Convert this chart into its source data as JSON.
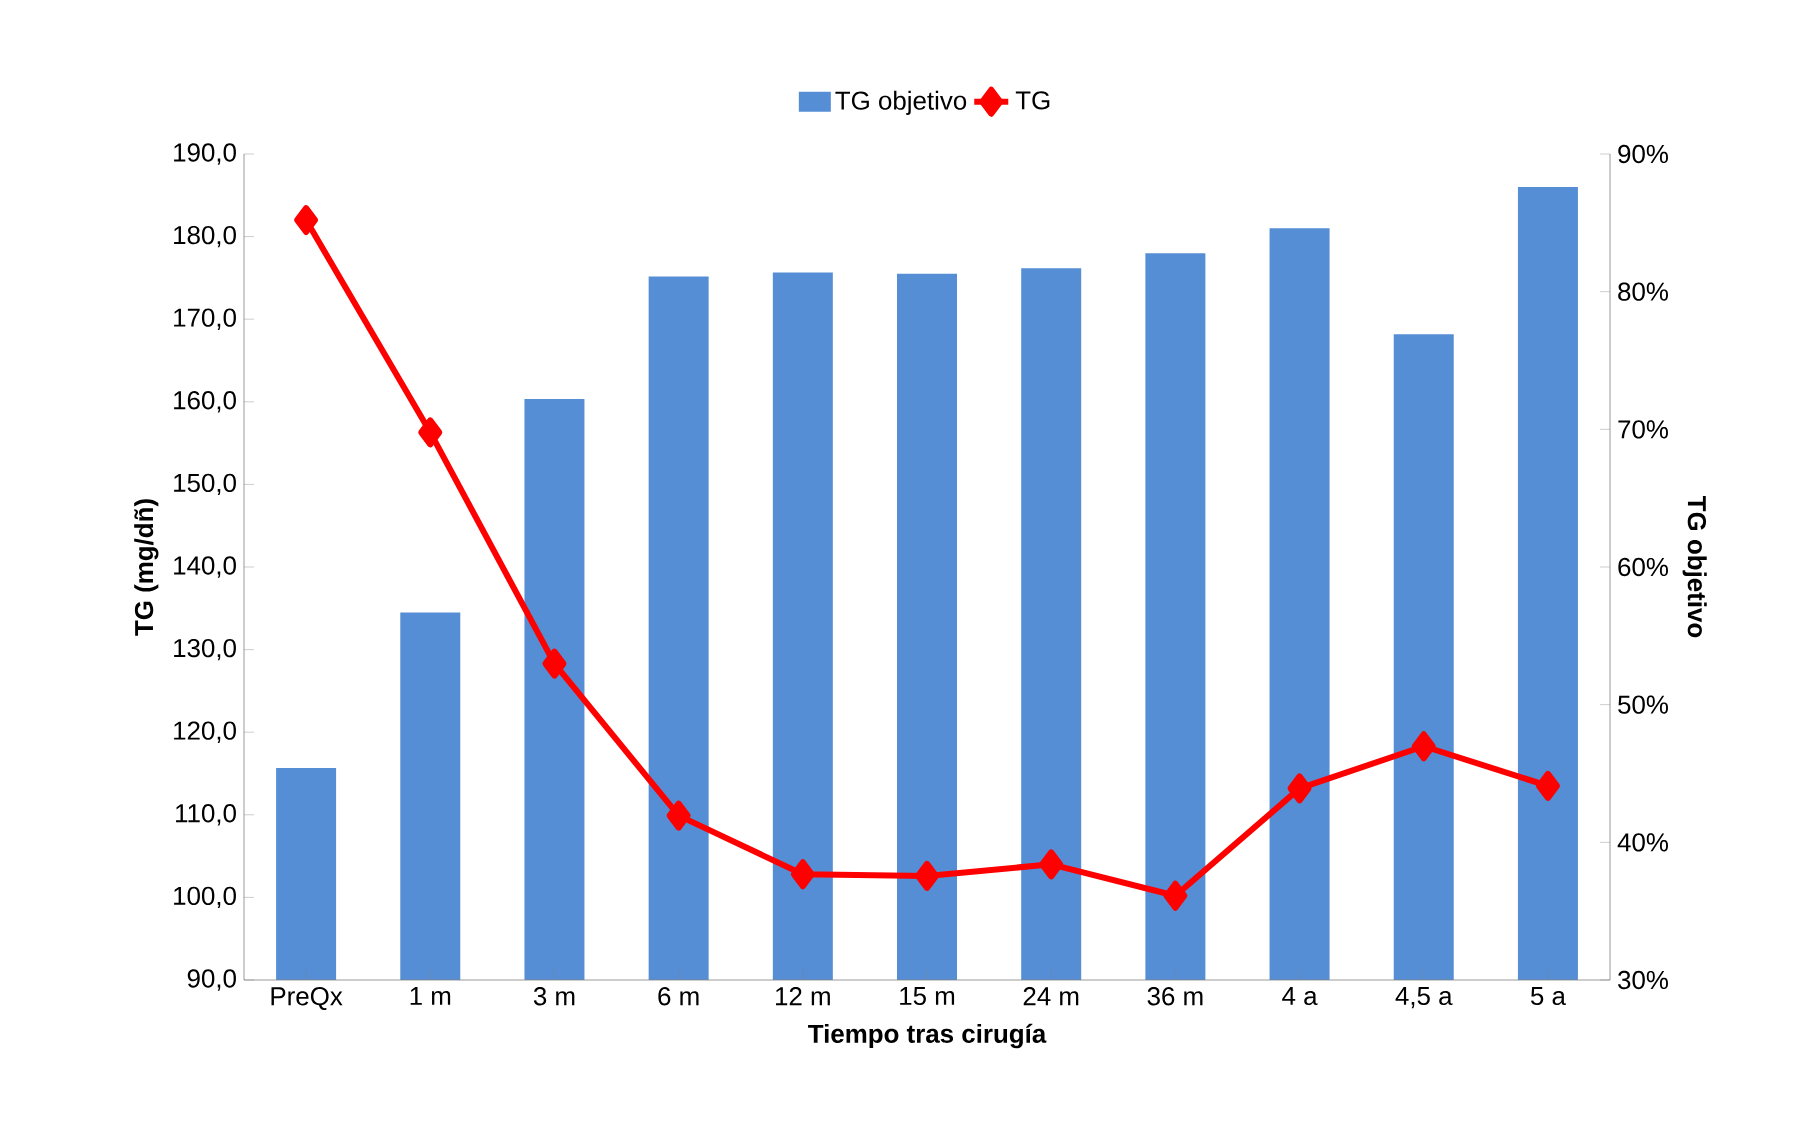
{
  "chart_data": {
    "type": "bar",
    "categories": [
      "PreQx",
      "1 m",
      "3 m",
      "6 m",
      "12 m",
      "15 m",
      "24 m",
      "36 m",
      "4 a",
      "4,5 a",
      "5 a"
    ],
    "series": [
      {
        "name": "TG objetivo",
        "axis": "y2",
        "color": "#558ed5",
        "values": [
          45.4,
          56.7,
          72.2,
          81.1,
          81.4,
          81.3,
          81.7,
          82.8,
          84.6,
          76.9,
          87.6
        ]
      },
      {
        "name": "TG",
        "type": "line",
        "color": "#ff0000",
        "marker": "diamond",
        "values": [
          182.0,
          156.3,
          128.3,
          109.9,
          102.8,
          102.6,
          104.0,
          100.2,
          113.2,
          118.3,
          113.5
        ]
      }
    ],
    "xlabel": "Tiempo tras cirugía",
    "ylabel": "TG (mg/dñ)",
    "y2label": "TG objetivo",
    "ylim": [
      90,
      190
    ],
    "yticks": [
      {
        "value": 90,
        "label": "90,0"
      },
      {
        "value": 100,
        "label": "100,0"
      },
      {
        "value": 110,
        "label": "110,0"
      },
      {
        "value": 120,
        "label": "120,0"
      },
      {
        "value": 130,
        "label": "130,0"
      },
      {
        "value": 140,
        "label": "140,0"
      },
      {
        "value": 150,
        "label": "150,0"
      },
      {
        "value": 160,
        "label": "160,0"
      },
      {
        "value": 170,
        "label": "170,0"
      },
      {
        "value": 180,
        "label": "180,0"
      },
      {
        "value": 190,
        "label": "190,0"
      }
    ],
    "y2lim": [
      30,
      90
    ],
    "y2ticks": [
      {
        "value": 30,
        "label": "30%"
      },
      {
        "value": 40,
        "label": "40%"
      },
      {
        "value": 50,
        "label": "50%"
      },
      {
        "value": 60,
        "label": "60%"
      },
      {
        "value": 70,
        "label": "70%"
      },
      {
        "value": 80,
        "label": "80%"
      },
      {
        "value": 90,
        "label": "90%"
      }
    ],
    "legend": "top"
  }
}
